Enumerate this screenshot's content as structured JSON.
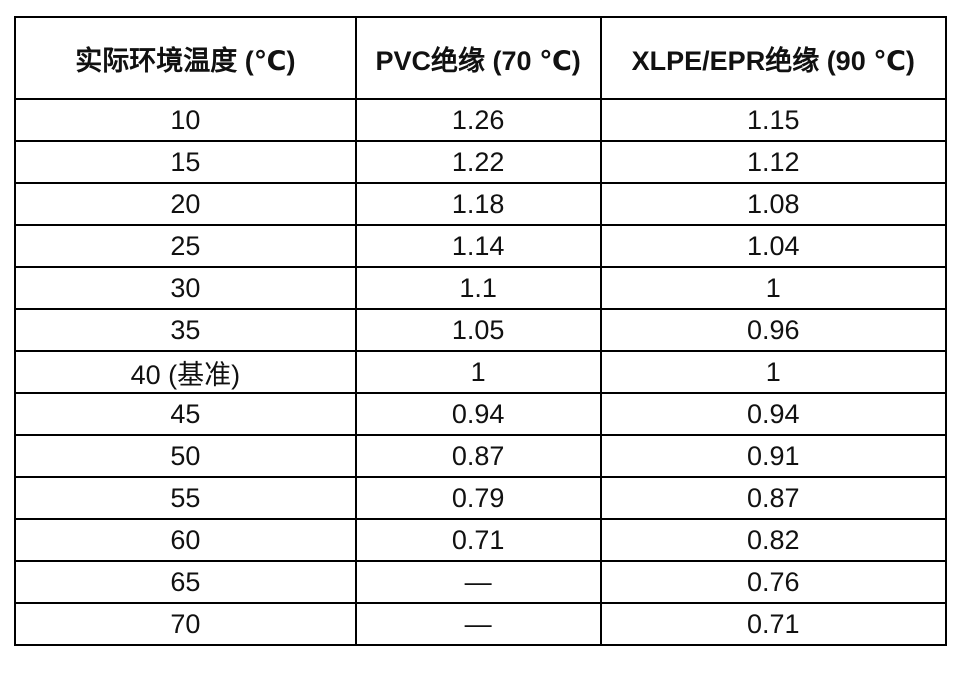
{
  "table": {
    "title_semantic": "temperature-correction-factors",
    "columns": [
      {
        "label": "实际环境温度 (℃)"
      },
      {
        "label": "PVC绝缘 (70 ℃)"
      },
      {
        "label": "XLPE/EPR绝缘 (90 ℃)"
      }
    ],
    "rows": [
      [
        "10",
        "1.26",
        "1.15"
      ],
      [
        "15",
        "1.22",
        "1.12"
      ],
      [
        "20",
        "1.18",
        "1.08"
      ],
      [
        "25",
        "1.14",
        "1.04"
      ],
      [
        "30",
        "1.1",
        "1"
      ],
      [
        "35",
        "1.05",
        "0.96"
      ],
      [
        "40 (基准)",
        "1",
        "1"
      ],
      [
        "45",
        "0.94",
        "0.94"
      ],
      [
        "50",
        "0.87",
        "0.91"
      ],
      [
        "55",
        "0.79",
        "0.87"
      ],
      [
        "60",
        "0.71",
        "0.82"
      ],
      [
        "65",
        "—",
        "0.76"
      ],
      [
        "70",
        "—",
        "0.71"
      ]
    ]
  },
  "colors": {
    "border": "#000000",
    "text": "#111111",
    "background": "#ffffff"
  }
}
